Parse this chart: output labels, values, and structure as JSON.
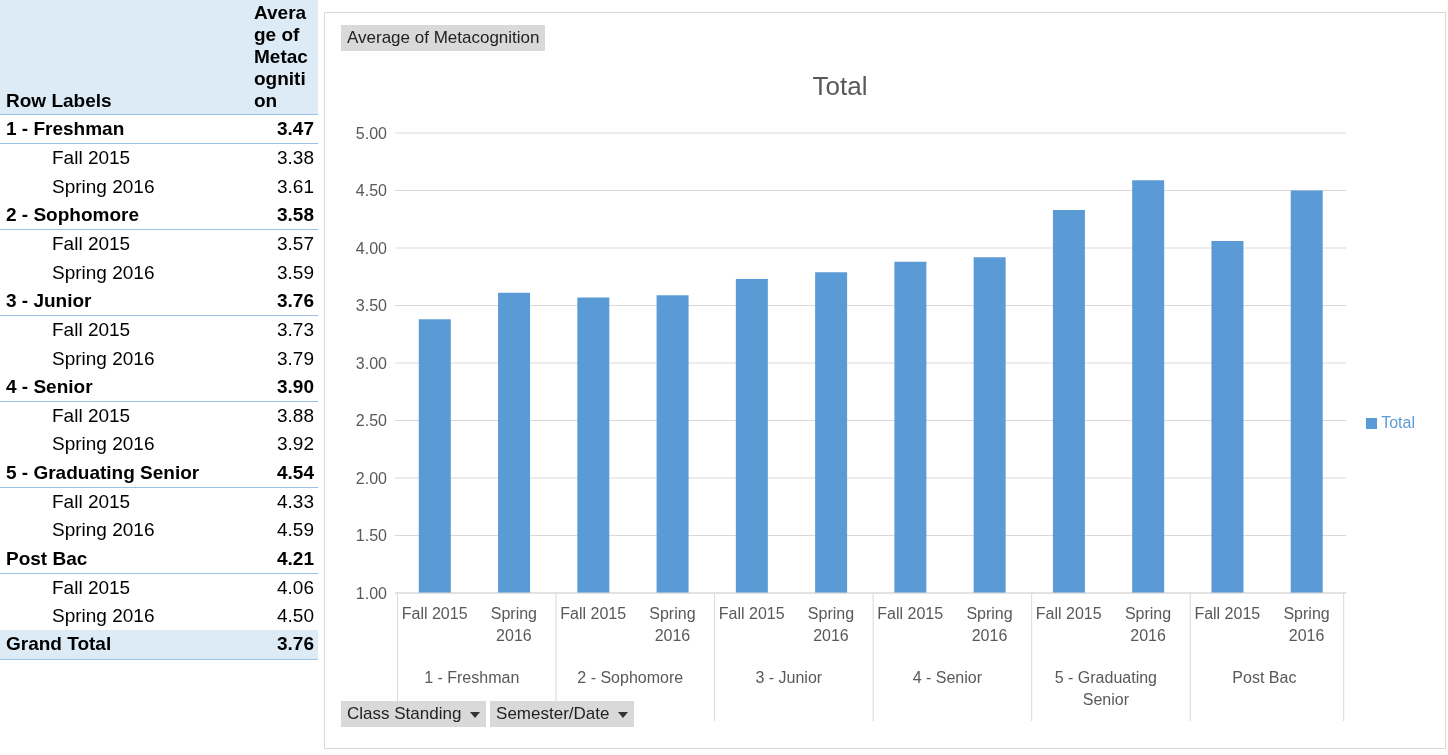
{
  "chart_data": [
    {
      "type": "other",
      "title": "Row Labels",
      "ylabel": "Average of Metacognition",
      "annotations": [
        "1 - Freshman",
        "3.47",
        "Fall 2015",
        "3.38",
        "Spring 2016",
        "3.61",
        "2 - Sophomore",
        "3.58",
        "Fall 2015",
        "3.57",
        "Spring 2016",
        "3.59",
        "3 - Junior",
        "3.76",
        "Fall 2015",
        "3.73",
        "Spring 2016",
        "3.79",
        "4 - Senior",
        "3.90",
        "Fall 2015",
        "3.88",
        "Spring 2016",
        "3.92",
        "5 - Graduating Senior",
        "4.54",
        "Fall 2015",
        "4.33",
        "Spring 2016",
        "4.59",
        "Post Bac",
        "4.21",
        "Fall 2015",
        "4.06",
        "Spring 2016",
        "4.50",
        "Grand Total",
        "3.76"
      ]
    },
    {
      "type": "bar",
      "title": "Total",
      "categories": [
        "Fall 2015",
        "Spring 2016",
        "Fall 2015",
        "Spring 2016",
        "Fall 2015",
        "Spring 2016",
        "Fall 2015",
        "Spring 2016",
        "Fall 2015",
        "Spring 2016",
        "Fall 2015",
        "Spring 2016"
      ],
      "series": [
        {
          "name": "Total",
          "color": "#5b9bd5",
          "values": [
            3.38,
            3.61,
            3.57,
            3.59,
            3.73,
            3.79,
            3.88,
            3.92,
            4.33,
            4.59,
            4.06,
            4.5
          ]
        }
      ],
      "ylim": [
        1,
        5
      ],
      "yticks": [
        {
          "value": 1,
          "label": "1.00"
        },
        {
          "value": 1.5,
          "label": "1.50"
        },
        {
          "value": 2,
          "label": "2.00"
        },
        {
          "value": 2.5,
          "label": "2.50"
        },
        {
          "value": 3,
          "label": "3.00"
        },
        {
          "value": 3.5,
          "label": "3.50"
        },
        {
          "value": 4,
          "label": "4.00"
        },
        {
          "value": 4.5,
          "label": "4.50"
        },
        {
          "value": 5,
          "label": "5.00"
        }
      ],
      "grid": "y",
      "legend": "right",
      "annotations": [
        "Average of Metacognition",
        "Class Standing",
        "Semester/Date",
        "1 - Freshman",
        "2 - Sophomore",
        "3 - Junior",
        "4 - Senior",
        "5 - Graduating Senior",
        "Post Bac"
      ]
    }
  ]
}
